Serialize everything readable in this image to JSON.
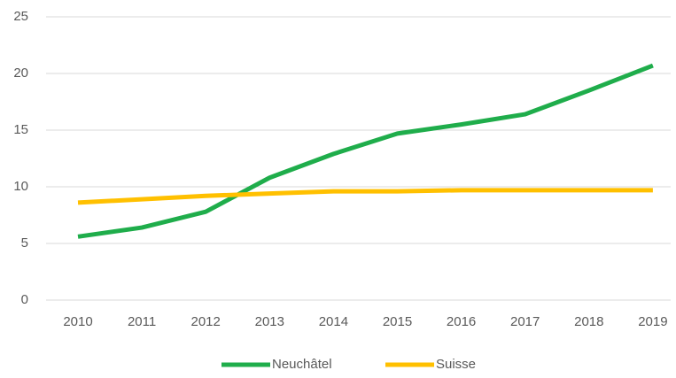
{
  "chart_data": {
    "type": "line",
    "categories": [
      "2010",
      "2011",
      "2012",
      "2013",
      "2014",
      "2015",
      "2016",
      "2017",
      "2018",
      "2019"
    ],
    "series": [
      {
        "name": "Neuchâtel",
        "color": "#1fad4b",
        "values": [
          5.6,
          6.4,
          7.8,
          10.8,
          12.9,
          14.7,
          15.5,
          16.4,
          18.5,
          20.7
        ]
      },
      {
        "name": "Suisse",
        "color": "#ffc000",
        "values": [
          8.6,
          8.9,
          9.2,
          9.4,
          9.6,
          9.6,
          9.7,
          9.7,
          9.7,
          9.7
        ]
      }
    ],
    "ylim": [
      0,
      25
    ],
    "yticks": [
      0,
      5,
      10,
      15,
      20,
      25
    ],
    "grid": true,
    "legend": "bottom"
  }
}
